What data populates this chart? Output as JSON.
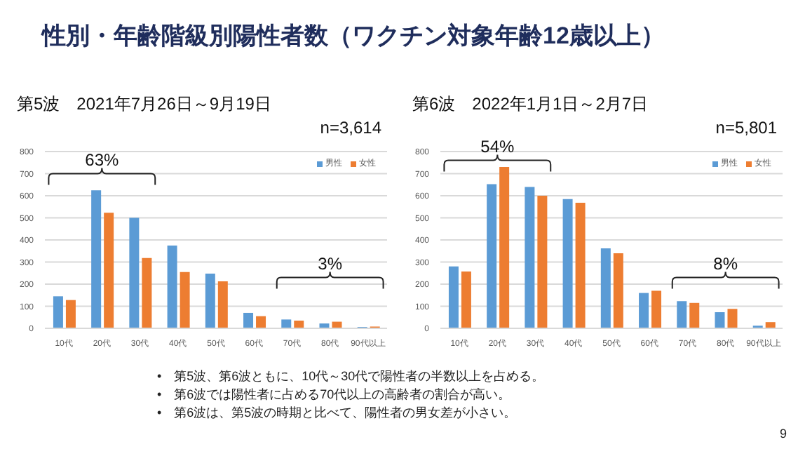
{
  "chart_data": [
    {
      "type": "bar",
      "title": "性別・年齢階級別陽性者数（ワクチン対象年齢12歳以上）",
      "subtitle": "第5波　2021年7月26日～9月19日",
      "categories": [
        "10代",
        "20代",
        "30代",
        "40代",
        "50代",
        "60代",
        "70代",
        "80代",
        "90代以上"
      ],
      "series": [
        {
          "name": "男性",
          "color": "#5b9bd5",
          "values": [
            145,
            625,
            500,
            375,
            248,
            70,
            40,
            22,
            6
          ]
        },
        {
          "name": "女性",
          "color": "#ed7d31",
          "values": [
            128,
            523,
            318,
            255,
            213,
            55,
            35,
            30,
            8
          ]
        }
      ],
      "ylim": [
        0,
        800
      ],
      "yticks": [
        0,
        100,
        200,
        300,
        400,
        500,
        600,
        700,
        800
      ],
      "grid": "y",
      "legend": "top right",
      "annotations": [
        "n=3,614",
        "63%",
        "3%"
      ]
    },
    {
      "type": "bar",
      "subtitle": "第6波　2022年1月1日～2月7日",
      "categories": [
        "10代",
        "20代",
        "30代",
        "40代",
        "50代",
        "60代",
        "70代",
        "80代",
        "90代以上"
      ],
      "series": [
        {
          "name": "男性",
          "color": "#5b9bd5",
          "values": [
            280,
            652,
            640,
            585,
            362,
            160,
            123,
            73,
            12
          ]
        },
        {
          "name": "女性",
          "color": "#ed7d31",
          "values": [
            257,
            730,
            600,
            568,
            340,
            170,
            115,
            88,
            28
          ]
        }
      ],
      "ylim": [
        0,
        800
      ],
      "yticks": [
        0,
        100,
        200,
        300,
        400,
        500,
        600,
        700,
        800
      ],
      "grid": "y",
      "legend": "top right",
      "annotations": [
        "n=5,801",
        "54%",
        "8%",
        "•　第5波、第6波ともに、10代～30代で陽性者の半数以上を占める。",
        "•　第6波では陽性者に占める70代以上の高齢者の割合が高い。",
        "•　第6波は、第5波の時期と比べて、陽性者の男女差が小さい。",
        "9"
      ]
    }
  ]
}
